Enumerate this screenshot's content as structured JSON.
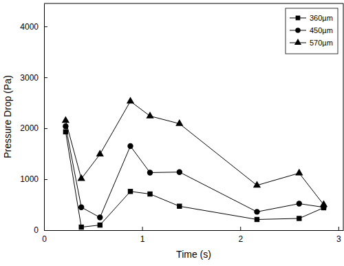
{
  "chart_data": {
    "type": "line",
    "x_label": "Time (s)",
    "y_label": "Pressure Drop (Pa)",
    "x": [
      0.22,
      0.38,
      0.57,
      0.88,
      1.08,
      1.38,
      2.17,
      2.6,
      2.85
    ],
    "series": [
      {
        "name": "360µm",
        "color": "#000000",
        "marker": "square",
        "line_style": "solid",
        "values": [
          1930,
          60,
          100,
          760,
          710,
          470,
          210,
          230,
          440
        ]
      },
      {
        "name": "450µm",
        "color": "#000000",
        "marker": "circle",
        "line_style": "solid",
        "values": [
          2040,
          450,
          250,
          1650,
          1130,
          1140,
          360,
          520,
          450
        ]
      },
      {
        "name": "570µm",
        "color": "#000000",
        "marker": "triangle",
        "line_style": "solid",
        "values": [
          2150,
          1010,
          1490,
          2530,
          2240,
          2090,
          880,
          1120,
          500
        ]
      }
    ],
    "xlim": [
      0,
      3.05
    ],
    "xticks": [
      0,
      1,
      2,
      3
    ],
    "ylim": [
      0,
      4450
    ],
    "yticks": [
      0,
      1000,
      2000,
      3000,
      4000
    ],
    "grid": false,
    "legend": "top-right"
  }
}
